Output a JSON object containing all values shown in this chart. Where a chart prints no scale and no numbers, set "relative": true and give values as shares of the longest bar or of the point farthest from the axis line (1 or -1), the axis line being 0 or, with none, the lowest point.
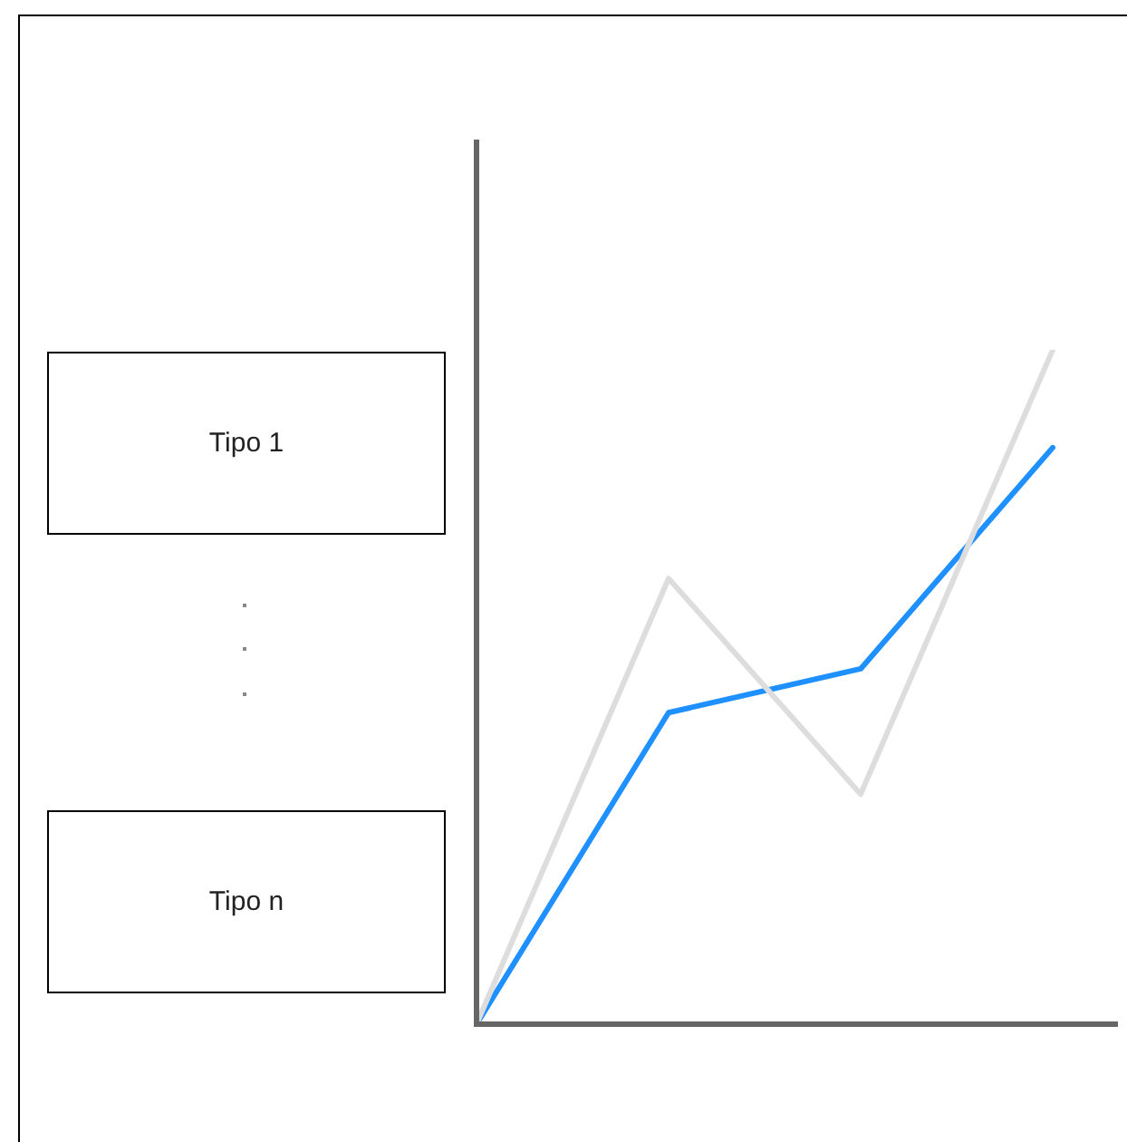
{
  "chart_data": {
    "type": "line",
    "relative": true,
    "categories": [
      null,
      null,
      null,
      null
    ],
    "series": [
      {
        "color": "#dddddd",
        "values": [
          0,
          0.661,
          0.341,
          1
        ]
      },
      {
        "color": "#1e90ff",
        "values": [
          0,
          0.462,
          0.527,
          0.855
        ]
      }
    ],
    "annotations": [
      "Tipo 1",
      "Tipo n"
    ],
    "legend": false,
    "marker": "none",
    "line_style": "solid"
  }
}
